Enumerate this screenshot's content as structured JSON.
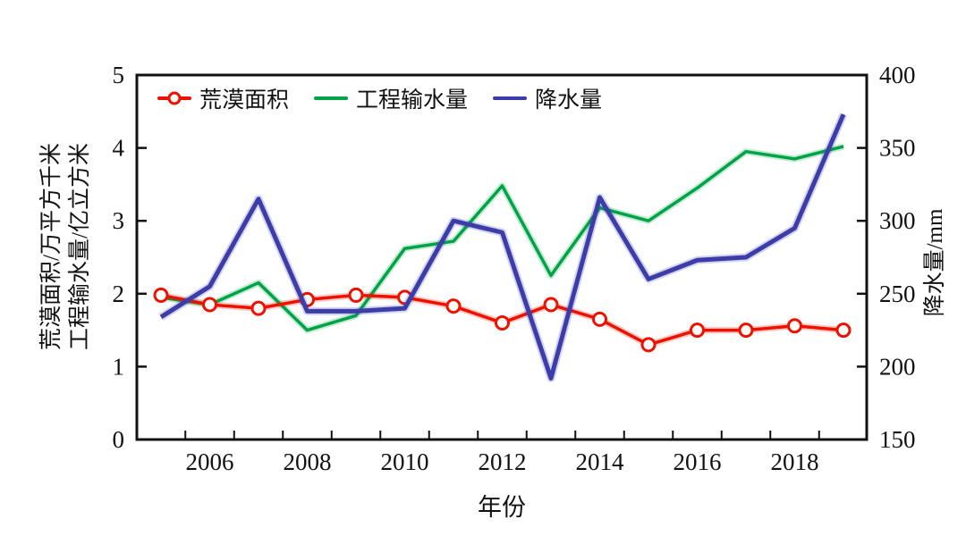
{
  "chart_data": {
    "type": "line",
    "xlabel": "年份",
    "ylabel_left_line1": "荒漠面积/万平方千米",
    "ylabel_left_line2": "工程输水量/亿立方米",
    "ylabel_right": "降水量/mm",
    "x": [
      2005,
      2006,
      2007,
      2008,
      2009,
      2010,
      2011,
      2012,
      2013,
      2014,
      2015,
      2016,
      2017,
      2018,
      2019
    ],
    "x_label_years": [
      2006,
      2008,
      2010,
      2012,
      2014,
      2016,
      2018
    ],
    "left_axis": {
      "min": 0,
      "max": 5,
      "ticks": [
        0,
        1,
        2,
        3,
        4,
        5
      ]
    },
    "right_axis": {
      "min": 150,
      "max": 400,
      "ticks": [
        150,
        200,
        250,
        300,
        350,
        400
      ]
    },
    "grid": false,
    "legend_position": "top-inside",
    "axis_color": "#111111",
    "series": [
      {
        "name": "荒漠面积",
        "axis": "left",
        "color": "#ee1100",
        "marker": "circle",
        "width": 3.5,
        "z": 2,
        "values": [
          1.98,
          1.85,
          1.8,
          1.92,
          1.98,
          1.95,
          1.83,
          1.6,
          1.85,
          1.65,
          1.3,
          1.5,
          1.5,
          1.56,
          1.5
        ]
      },
      {
        "name": "工程输水量",
        "axis": "left",
        "color": "#00a447",
        "marker": "none",
        "width": 3.5,
        "z": 1,
        "values": [
          1.95,
          1.85,
          2.15,
          1.5,
          1.7,
          2.62,
          2.72,
          3.48,
          2.25,
          3.18,
          3.0,
          3.45,
          3.95,
          3.85,
          4.02
        ]
      },
      {
        "name": "降水量",
        "axis": "right",
        "color": "#3d3daa",
        "marker": "none",
        "width": 5,
        "z": 3,
        "values": [
          234,
          255,
          315,
          238,
          238,
          240,
          300,
          292,
          192,
          316,
          260,
          273,
          275,
          295,
          373
        ]
      }
    ]
  }
}
